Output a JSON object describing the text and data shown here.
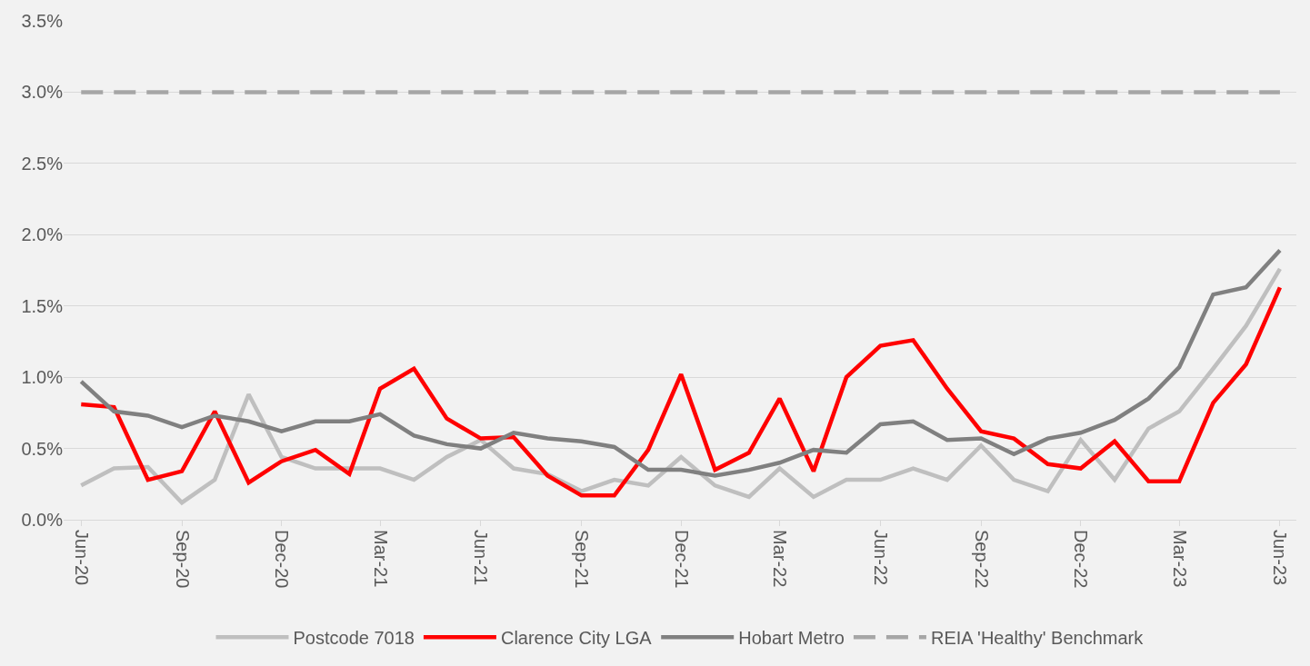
{
  "chart_data": {
    "type": "line",
    "x": [
      "2020-06",
      "2020-07",
      "2020-08",
      "2020-09",
      "2020-10",
      "2020-11",
      "2020-12",
      "2021-01",
      "2021-02",
      "2021-03",
      "2021-04",
      "2021-05",
      "2021-06",
      "2021-07",
      "2021-08",
      "2021-09",
      "2021-10",
      "2021-11",
      "2021-12",
      "2022-01",
      "2022-02",
      "2022-03",
      "2022-04",
      "2022-05",
      "2022-06",
      "2022-07",
      "2022-08",
      "2022-09",
      "2022-10",
      "2022-11",
      "2022-12",
      "2023-01",
      "2023-02",
      "2023-03",
      "2023-04",
      "2023-05",
      "2023-06"
    ],
    "series": [
      {
        "name": "Postcode 7018",
        "color": "#bfbfbf",
        "values": [
          0.24,
          0.36,
          0.37,
          0.12,
          0.28,
          0.88,
          0.44,
          0.36,
          0.36,
          0.36,
          0.28,
          0.44,
          0.56,
          0.36,
          0.32,
          0.2,
          0.28,
          0.24,
          0.44,
          0.24,
          0.16,
          0.36,
          0.16,
          0.28,
          0.28,
          0.36,
          0.28,
          0.52,
          0.28,
          0.2,
          0.56,
          0.28,
          0.64,
          0.76,
          1.06,
          1.36,
          1.76
        ]
      },
      {
        "name": "Clarence City LGA",
        "color": "#ff0000",
        "values": [
          0.81,
          0.79,
          0.28,
          0.34,
          0.76,
          0.26,
          0.41,
          0.49,
          0.32,
          0.92,
          1.06,
          0.71,
          0.57,
          0.58,
          0.31,
          0.17,
          0.17,
          0.49,
          1.02,
          0.35,
          0.47,
          0.85,
          0.34,
          1.0,
          1.22,
          1.26,
          0.92,
          0.62,
          0.57,
          0.39,
          0.36,
          0.55,
          0.27,
          0.27,
          0.82,
          1.09,
          1.63
        ]
      },
      {
        "name": "Hobart Metro",
        "color": "#808080",
        "values": [
          0.97,
          0.76,
          0.73,
          0.65,
          0.73,
          0.69,
          0.62,
          0.69,
          0.69,
          0.74,
          0.59,
          0.53,
          0.5,
          0.61,
          0.57,
          0.55,
          0.51,
          0.35,
          0.35,
          0.31,
          0.35,
          0.4,
          0.49,
          0.47,
          0.67,
          0.69,
          0.56,
          0.57,
          0.46,
          0.57,
          0.61,
          0.7,
          0.85,
          1.07,
          1.58,
          1.63,
          1.89
        ]
      },
      {
        "name": "REIA 'Healthy' Benchmark",
        "color": "#a6a6a6",
        "line_style": "dashed",
        "values": [
          3.0,
          3.0,
          3.0,
          3.0,
          3.0,
          3.0,
          3.0,
          3.0,
          3.0,
          3.0,
          3.0,
          3.0,
          3.0,
          3.0,
          3.0,
          3.0,
          3.0,
          3.0,
          3.0,
          3.0,
          3.0,
          3.0,
          3.0,
          3.0,
          3.0,
          3.0,
          3.0,
          3.0,
          3.0,
          3.0,
          3.0,
          3.0,
          3.0,
          3.0,
          3.0,
          3.0,
          3.0
        ]
      }
    ],
    "xlim": [
      "2020-05-16",
      "2023-06-16"
    ],
    "xticks": [
      {
        "value": "2020-06",
        "label": "Jun-20"
      },
      {
        "value": "2020-09",
        "label": "Sep-20"
      },
      {
        "value": "2020-12",
        "label": "Dec-20"
      },
      {
        "value": "2021-03",
        "label": "Mar-21"
      },
      {
        "value": "2021-06",
        "label": "Jun-21"
      },
      {
        "value": "2021-09",
        "label": "Sep-21"
      },
      {
        "value": "2021-12",
        "label": "Dec-21"
      },
      {
        "value": "2022-03",
        "label": "Mar-22"
      },
      {
        "value": "2022-06",
        "label": "Jun-22"
      },
      {
        "value": "2022-09",
        "label": "Sep-22"
      },
      {
        "value": "2022-12",
        "label": "Dec-22"
      },
      {
        "value": "2023-03",
        "label": "Mar-23"
      },
      {
        "value": "2023-06",
        "label": "Jun-23"
      }
    ],
    "ylim": [
      0,
      3.5
    ],
    "yticks": [
      {
        "value": 0,
        "label": "0.0%"
      },
      {
        "value": 0.5,
        "label": "0.5%"
      },
      {
        "value": 1.0,
        "label": "1.0%"
      },
      {
        "value": 1.5,
        "label": "1.5%"
      },
      {
        "value": 2.0,
        "label": "2.0%"
      },
      {
        "value": 2.5,
        "label": "2.5%"
      },
      {
        "value": 3.0,
        "label": "3.0%"
      },
      {
        "value": 3.5,
        "label": "3.5%"
      }
    ],
    "grid": "y",
    "legend": "bottom",
    "line_style": "solid",
    "marker": "none"
  }
}
